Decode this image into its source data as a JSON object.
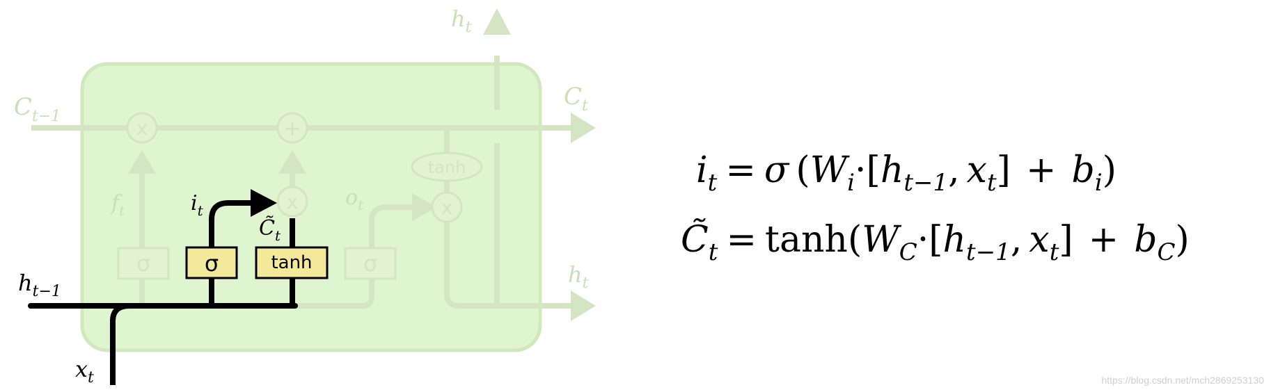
{
  "diagram": {
    "title": "",
    "colors": {
      "cell_background": "#dff5cf",
      "cell_border": "#cfe8bc",
      "faint_element": "#d3e5c2",
      "active_path": "#000000",
      "active_gate_fill": "#f4e99a"
    },
    "gates": {
      "forget": "σ",
      "input": "σ",
      "candidate": "tanh",
      "output": "σ",
      "output_tanh": "tanh"
    },
    "ops": {
      "multiply": "x",
      "add": "+"
    },
    "labels": {
      "c_prev_main": "C",
      "c_prev_sub": "t−1",
      "c_t_main": "C",
      "c_t_sub": "t",
      "h_top_main": "h",
      "h_top_sub": "t",
      "h_right_main": "h",
      "h_right_sub": "t",
      "h_prev_main": "h",
      "h_prev_sub": "t−1",
      "x_main": "x",
      "x_sub": "t",
      "f_main": "f",
      "f_sub": "t",
      "i_main": "i",
      "i_sub": "t",
      "o_main": "o",
      "o_sub": "t",
      "ctilde_main": "C̃",
      "ctilde_sub": "t"
    }
  },
  "equations": {
    "eq1": {
      "lhs_main": "i",
      "lhs_sub": "t",
      "eq": "=",
      "func": "σ",
      "open": "(",
      "w_main": "W",
      "w_sub": "i",
      "dot": "·",
      "lbr": "[",
      "h_main": "h",
      "h_sub": "t−1",
      "comma": ",",
      "x_main": "x",
      "x_sub": "t",
      "rbr": "]",
      "plus": "+",
      "b_main": "b",
      "b_sub": "i",
      "close": ")"
    },
    "eq2": {
      "lhs_main": "C̃",
      "lhs_sub": "t",
      "eq": "=",
      "func": "tanh",
      "open": "(",
      "w_main": "W",
      "w_sub": "C",
      "dot": "·",
      "lbr": "[",
      "h_main": "h",
      "h_sub": "t−1",
      "comma": ",",
      "x_main": "x",
      "x_sub": "t",
      "rbr": "]",
      "plus": "+",
      "b_main": "b",
      "b_sub": "C",
      "close": ")"
    }
  },
  "watermark": "https://blog.csdn.net/mch2869253130"
}
